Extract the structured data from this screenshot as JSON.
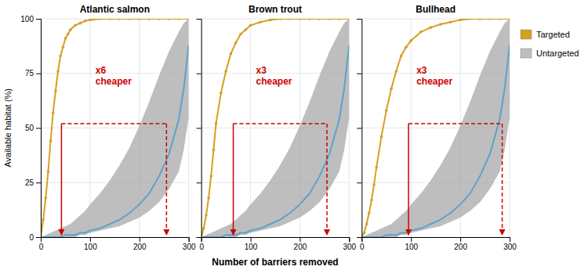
{
  "chart_data": [
    {
      "type": "line",
      "title": "Atlantic salmon",
      "xlabel": "Number of barriers removed",
      "ylabel": "Available habitat (%)",
      "xlim": [
        0,
        300
      ],
      "ylim": [
        0,
        100
      ],
      "xticks": [
        0,
        100,
        200,
        300
      ],
      "yticks": [
        0,
        25,
        50,
        75,
        100
      ],
      "grid": true,
      "legend": "right",
      "series": [
        {
          "name": "Targeted",
          "type": "line",
          "color": "#D4A020",
          "marker": "circle",
          "x": [
            0,
            5,
            10,
            15,
            20,
            25,
            30,
            35,
            40,
            45,
            50,
            55,
            60,
            70,
            80,
            90,
            100,
            120,
            140,
            160,
            180,
            200,
            220,
            240,
            260,
            280,
            300
          ],
          "values": [
            0,
            8,
            18,
            30,
            44,
            57,
            67,
            76,
            83,
            87,
            91,
            93,
            95,
            97,
            98,
            99,
            99.5,
            100,
            100,
            100,
            100,
            100,
            100,
            100,
            100,
            100,
            100
          ]
        },
        {
          "type": "line",
          "color": "#5BA3C9",
          "x": [
            0,
            10,
            20,
            30,
            40,
            50,
            60,
            70,
            80,
            90,
            100,
            120,
            140,
            160,
            180,
            200,
            220,
            240,
            260,
            280,
            290,
            300
          ],
          "values": [
            0,
            0,
            0,
            0,
            0,
            1,
            1,
            1,
            2,
            2,
            3,
            4,
            6,
            8,
            11,
            15,
            20,
            28,
            38,
            54,
            68,
            88
          ]
        },
        {
          "name": "Untargeted",
          "type": "area",
          "color": "#A8A8A8",
          "x": [
            0,
            10,
            20,
            30,
            40,
            50,
            60,
            70,
            80,
            90,
            100,
            120,
            140,
            160,
            180,
            200,
            220,
            240,
            260,
            280,
            290,
            300
          ],
          "lower": [
            0,
            0,
            0,
            0,
            0,
            0,
            0,
            0,
            1,
            1,
            2,
            3,
            4,
            5,
            7,
            9,
            12,
            16,
            22,
            30,
            40,
            55
          ],
          "upper": [
            0,
            1,
            2,
            3,
            4,
            5,
            6,
            8,
            10,
            12,
            15,
            20,
            26,
            33,
            41,
            51,
            62,
            74,
            85,
            94,
            98,
            100
          ]
        }
      ],
      "annotations": [
        {
          "type": "arrow",
          "x": 42,
          "y": 52,
          "y_end": 1,
          "line_style": "solid",
          "color": "#CC0000"
        },
        {
          "type": "arrow",
          "x": 255,
          "y": 52,
          "y_end": 1,
          "line_style": "dashed",
          "color": "#CC0000"
        },
        {
          "type": "line",
          "x": [
            42,
            255
          ],
          "y": 52,
          "line_style": "dashed",
          "color": "#CC0000"
        },
        {
          "type": "text",
          "text": "x6\ncheaper",
          "color": "#CC0000"
        }
      ]
    },
    {
      "type": "line",
      "title": "Brown trout",
      "xlim": [
        0,
        300
      ],
      "ylim": [
        0,
        100
      ],
      "xticks": [
        0,
        100,
        200,
        300
      ],
      "yticks": [
        0,
        25,
        50,
        75,
        100
      ],
      "grid": true,
      "tick_labels": "x",
      "series": [
        {
          "type": "line",
          "color": "#D4A020",
          "marker": "circle",
          "x": [
            0,
            5,
            10,
            15,
            20,
            25,
            30,
            40,
            50,
            60,
            70,
            80,
            90,
            100,
            120,
            140,
            160,
            180,
            200,
            220,
            240,
            260,
            280,
            300
          ],
          "values": [
            0,
            4,
            10,
            18,
            28,
            40,
            52,
            66,
            76,
            84,
            89,
            93,
            95,
            97,
            98.5,
            99.5,
            100,
            100,
            100,
            100,
            100,
            100,
            100,
            100
          ]
        },
        {
          "type": "line",
          "color": "#5BA3C9",
          "x": [
            0,
            10,
            20,
            30,
            40,
            50,
            60,
            70,
            80,
            90,
            100,
            120,
            140,
            160,
            180,
            200,
            220,
            240,
            260,
            280,
            290,
            300
          ],
          "values": [
            0,
            0,
            0,
            0,
            0,
            1,
            1,
            1,
            2,
            2,
            3,
            4,
            6,
            8,
            11,
            15,
            20,
            28,
            38,
            54,
            68,
            88
          ]
        },
        {
          "type": "area",
          "color": "#A8A8A8",
          "x": [
            0,
            10,
            20,
            30,
            40,
            50,
            60,
            70,
            80,
            90,
            100,
            120,
            140,
            160,
            180,
            200,
            220,
            240,
            260,
            280,
            290,
            300
          ],
          "lower": [
            0,
            0,
            0,
            0,
            0,
            0,
            0,
            0,
            1,
            1,
            2,
            3,
            4,
            5,
            7,
            9,
            12,
            16,
            22,
            30,
            40,
            55
          ],
          "upper": [
            0,
            1,
            2,
            3,
            4,
            5,
            6,
            8,
            10,
            12,
            15,
            20,
            26,
            33,
            41,
            51,
            62,
            74,
            85,
            94,
            98,
            100
          ]
        }
      ],
      "annotations": [
        {
          "type": "arrow",
          "x": 65,
          "y": 52,
          "y_end": 1,
          "line_style": "solid",
          "color": "#CC0000"
        },
        {
          "type": "arrow",
          "x": 255,
          "y": 52,
          "y_end": 1,
          "line_style": "dashed",
          "color": "#CC0000"
        },
        {
          "type": "line",
          "x": [
            65,
            255
          ],
          "y": 52,
          "line_style": "dashed",
          "color": "#CC0000"
        },
        {
          "type": "text",
          "text": "x3\ncheaper",
          "color": "#CC0000"
        }
      ]
    },
    {
      "type": "line",
      "title": "Bullhead",
      "xlim": [
        0,
        300
      ],
      "ylim": [
        0,
        100
      ],
      "xticks": [
        0,
        100,
        200,
        300
      ],
      "yticks": [
        0,
        25,
        50,
        75,
        100
      ],
      "grid": true,
      "tick_labels": "x",
      "series": [
        {
          "type": "line",
          "color": "#D4A020",
          "marker": "circle",
          "x": [
            0,
            5,
            10,
            15,
            20,
            25,
            30,
            40,
            50,
            60,
            70,
            80,
            90,
            100,
            120,
            140,
            160,
            180,
            200,
            220,
            240,
            260,
            280,
            300
          ],
          "values": [
            0,
            2,
            6,
            11,
            17,
            24,
            32,
            46,
            58,
            68,
            76,
            83,
            87,
            90,
            94,
            96,
            97.5,
            98.5,
            99.5,
            100,
            100,
            100,
            100,
            100
          ]
        },
        {
          "type": "line",
          "color": "#5BA3C9",
          "x": [
            0,
            10,
            20,
            30,
            40,
            50,
            60,
            70,
            80,
            90,
            100,
            120,
            140,
            160,
            180,
            200,
            220,
            240,
            260,
            280,
            290,
            300
          ],
          "values": [
            0,
            0,
            0,
            0,
            0,
            1,
            1,
            1,
            2,
            2,
            3,
            4,
            6,
            8,
            11,
            15,
            20,
            28,
            38,
            54,
            68,
            88
          ]
        },
        {
          "type": "area",
          "color": "#A8A8A8",
          "x": [
            0,
            10,
            20,
            30,
            40,
            50,
            60,
            70,
            80,
            90,
            100,
            120,
            140,
            160,
            180,
            200,
            220,
            240,
            260,
            280,
            290,
            300
          ],
          "lower": [
            0,
            0,
            0,
            0,
            0,
            0,
            0,
            0,
            1,
            1,
            2,
            3,
            4,
            5,
            7,
            9,
            12,
            16,
            22,
            30,
            40,
            55
          ],
          "upper": [
            0,
            1,
            2,
            3,
            4,
            5,
            6,
            8,
            10,
            12,
            15,
            20,
            26,
            33,
            41,
            51,
            62,
            74,
            85,
            94,
            98,
            100
          ]
        }
      ],
      "annotations": [
        {
          "type": "arrow",
          "x": 95,
          "y": 52,
          "y_end": 1,
          "line_style": "solid",
          "color": "#CC0000"
        },
        {
          "type": "arrow",
          "x": 285,
          "y": 52,
          "y_end": 1,
          "line_style": "dashed",
          "color": "#CC0000"
        },
        {
          "type": "line",
          "x": [
            95,
            285
          ],
          "y": 52,
          "line_style": "dashed",
          "color": "#CC0000"
        },
        {
          "type": "text",
          "text": "x3\ncheaper",
          "color": "#CC0000"
        }
      ]
    }
  ]
}
